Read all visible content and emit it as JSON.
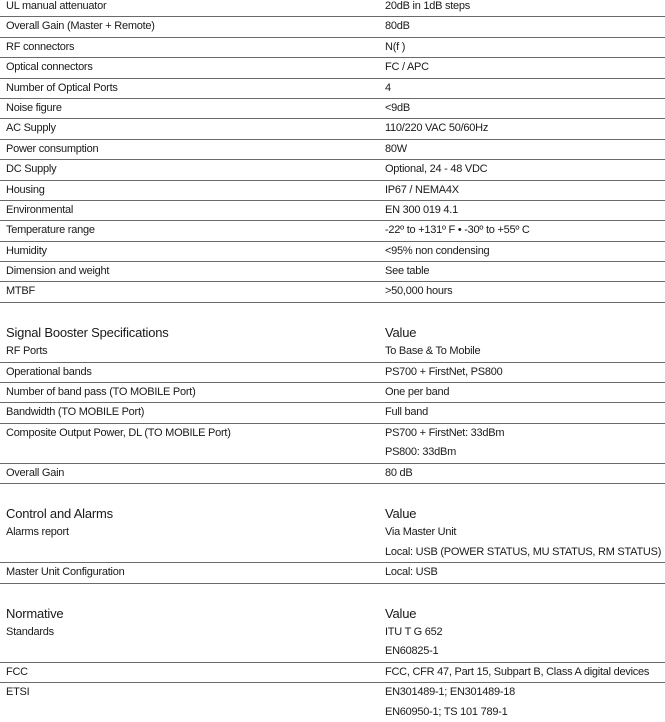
{
  "sections": [
    {
      "title": "",
      "value_header": "",
      "rows": [
        {
          "label": "UL manual attenuator",
          "values": [
            "20dB in 1dB steps"
          ]
        },
        {
          "label": "Overall Gain (Master + Remote)",
          "values": [
            "80dB"
          ]
        },
        {
          "label": "RF connectors",
          "values": [
            "N(f )"
          ]
        },
        {
          "label": "Optical connectors",
          "values": [
            "FC / APC"
          ]
        },
        {
          "label": "Number of Optical Ports",
          "values": [
            "4"
          ]
        },
        {
          "label": "Noise figure",
          "values": [
            "<9dB"
          ]
        },
        {
          "label": "AC Supply",
          "values": [
            "110/220 VAC 50/60Hz"
          ]
        },
        {
          "label": "Power consumption",
          "values": [
            "80W"
          ]
        },
        {
          "label": "DC Supply",
          "values": [
            "Optional, 24 - 48 VDC"
          ]
        },
        {
          "label": "Housing",
          "values": [
            "IP67 / NEMA4X"
          ]
        },
        {
          "label": "Environmental",
          "values": [
            "EN 300 019 4.1"
          ]
        },
        {
          "label": "Temperature range",
          "values": [
            "-22º to +131º F   •   -30º to +55º C"
          ]
        },
        {
          "label": "Humidity",
          "values": [
            "<95% non condensing"
          ]
        },
        {
          "label": "Dimension and weight",
          "values": [
            "See table"
          ]
        },
        {
          "label": "MTBF",
          "values": [
            ">50,000 hours"
          ]
        }
      ]
    },
    {
      "title": "Signal Booster Specifications",
      "value_header": "Value",
      "rows": [
        {
          "label": "RF Ports",
          "values": [
            "To Base & To Mobile"
          ]
        },
        {
          "label": "Operational bands",
          "values": [
            "PS700 + FirstNet, PS800"
          ]
        },
        {
          "label": "Number of band pass (TO MOBILE Port)",
          "values": [
            "One per band"
          ]
        },
        {
          "label": "Bandwidth (TO MOBILE Port)",
          "values": [
            "Full band"
          ]
        },
        {
          "label": "Composite Output Power, DL (TO MOBILE Port)",
          "values": [
            "PS700 + FirstNet: 33dBm",
            "PS800: 33dBm"
          ]
        },
        {
          "label": "Overall Gain",
          "values": [
            "80 dB"
          ]
        }
      ]
    },
    {
      "title": "Control and Alarms",
      "value_header": "Value",
      "rows": [
        {
          "label": "Alarms report",
          "values": [
            "Via Master Unit",
            "Local: USB (POWER STATUS, MU STATUS, RM STATUS)"
          ]
        },
        {
          "label": "Master Unit Configuration",
          "values": [
            "Local: USB"
          ]
        }
      ]
    },
    {
      "title": "Normative",
      "value_header": "Value",
      "rows": [
        {
          "label": "Standards",
          "values": [
            "ITU T G 652",
            "EN60825-1"
          ]
        },
        {
          "label": "FCC",
          "values": [
            "FCC, CFR 47, Part 15, Subpart B, Class A digital devices"
          ]
        },
        {
          "label": "ETSI",
          "values": [
            "EN301489-1; EN301489-18",
            "EN60950-1;  TS 101 789-1"
          ]
        }
      ]
    }
  ]
}
